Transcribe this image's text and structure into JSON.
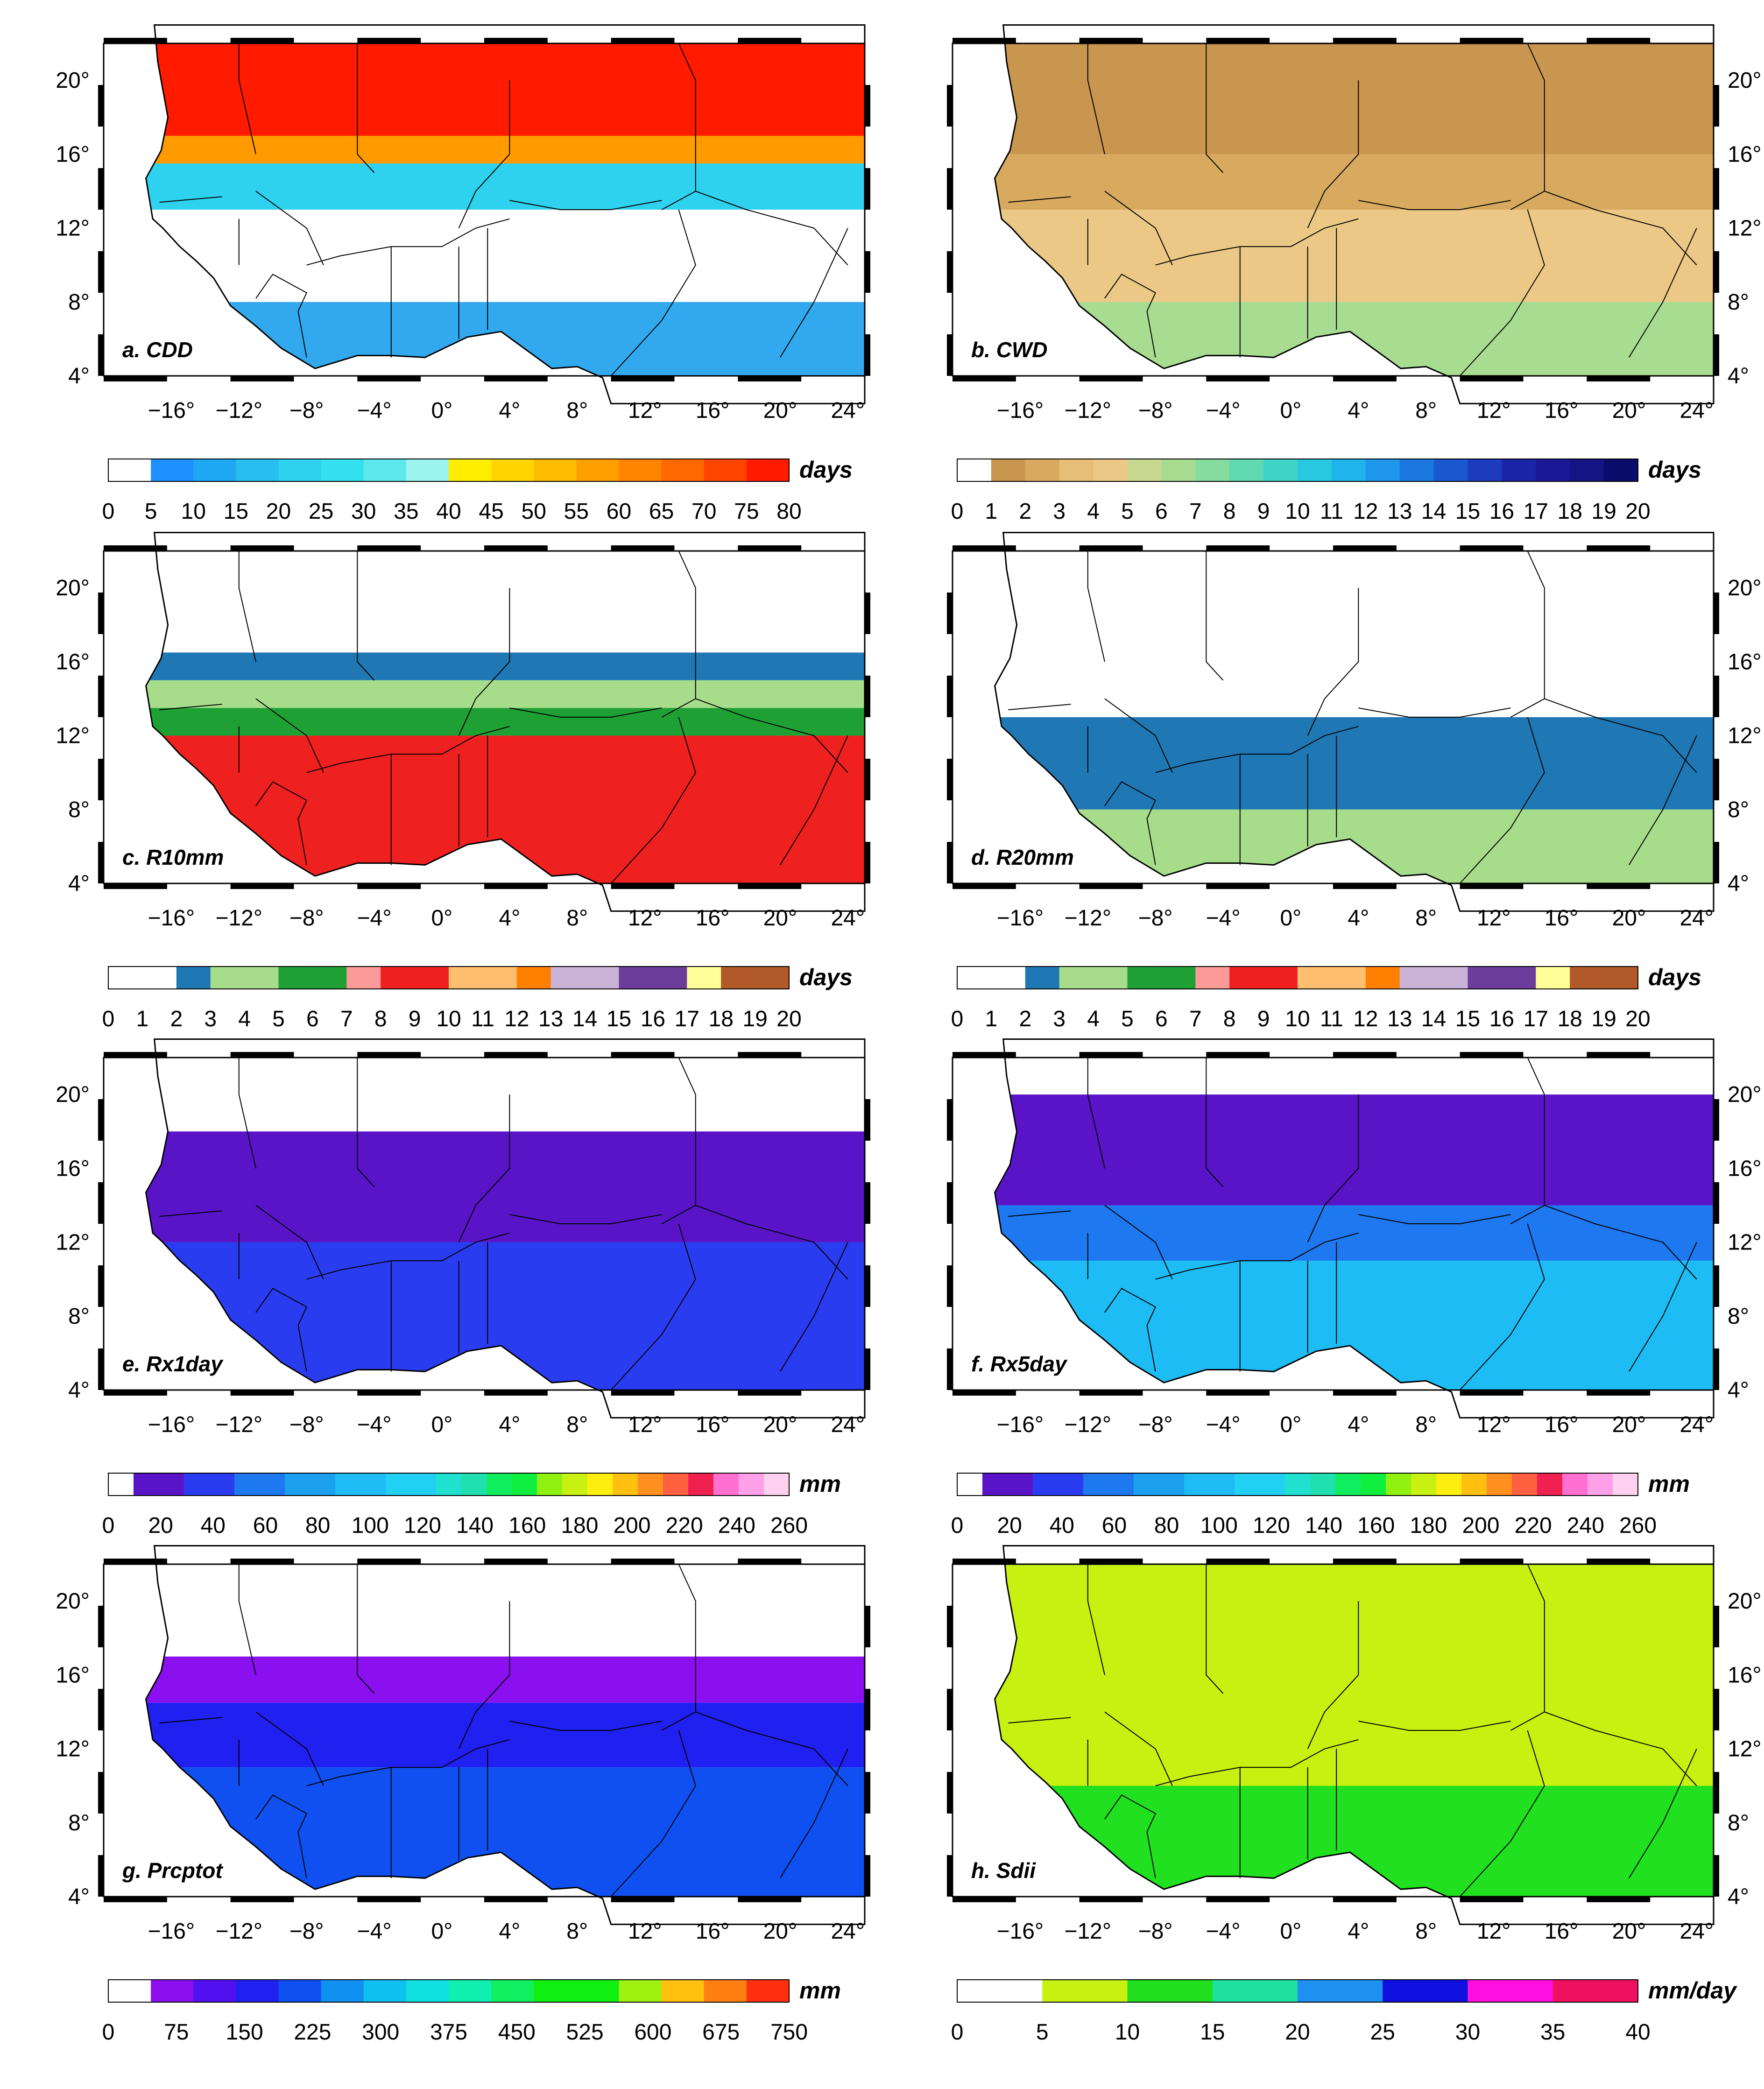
{
  "figure": "Maps of West Africa extreme precipitation indices",
  "lon_ticks": [
    "−16°",
    "−12°",
    "−8°",
    "−4°",
    "0°",
    "4°",
    "8°",
    "12°",
    "16°",
    "20°",
    "24°"
  ],
  "lat_ticks": [
    "20°",
    "16°",
    "12°",
    "8°",
    "4°"
  ],
  "map_extent": {
    "lon": [
      -20,
      25
    ],
    "lat": [
      4,
      22
    ]
  },
  "panels": [
    {
      "label": "a. CDD",
      "unit": "days",
      "colorbar": {
        "ticks": [
          "0",
          "5",
          "10",
          "15",
          "20",
          "25",
          "30",
          "35",
          "40",
          "45",
          "50",
          "55",
          "60",
          "65",
          "70",
          "75",
          "80"
        ],
        "colors": [
          "#ffffff",
          "#1e90ff",
          "#1ea8f4",
          "#28bff0",
          "#2ed2ee",
          "#32e0ee",
          "#5de8ee",
          "#9ef4ee",
          "#ffee00",
          "#ffd500",
          "#ffbb00",
          "#ffa000",
          "#ff8400",
          "#ff6800",
          "#ff4400",
          "#ff1a00"
        ]
      },
      "bands": [
        {
          "lat": [
            16,
            22
          ],
          "color": "#ff1a00"
        },
        {
          "lat": [
            14.3,
            17
          ],
          "color": "#ff9a00"
        },
        {
          "lat": [
            13,
            15.5
          ],
          "color": "#2ed2ee"
        },
        {
          "lat": [
            4,
            13
          ],
          "color": "#ffffff"
        },
        {
          "lat": [
            4,
            8
          ],
          "color": "#32a9ef"
        }
      ]
    },
    {
      "label": "b. CWD",
      "unit": "days",
      "colorbar": {
        "ticks": [
          "0",
          "1",
          "2",
          "3",
          "4",
          "5",
          "6",
          "7",
          "8",
          "9",
          "10",
          "11",
          "12",
          "13",
          "14",
          "15",
          "16",
          "17",
          "18",
          "19",
          "20"
        ],
        "colors": [
          "#ffffff",
          "#c8964e",
          "#d8aa60",
          "#e6be78",
          "#ecc886",
          "#c8d890",
          "#a8dc90",
          "#86dca0",
          "#60d8b0",
          "#40d4c8",
          "#28c8e0",
          "#20b4ec",
          "#1e96ec",
          "#1a78e0",
          "#1a58d0",
          "#1c3cbe",
          "#1c24a8",
          "#1a1896",
          "#161484",
          "#0c0c6c"
        ]
      },
      "bands": [
        {
          "lat": [
            16,
            22
          ],
          "color": "#c8964e"
        },
        {
          "lat": [
            13,
            16
          ],
          "color": "#d8aa60"
        },
        {
          "lat": [
            8,
            13
          ],
          "color": "#ecc886"
        },
        {
          "lat": [
            4,
            8
          ],
          "color": "#a8dc90"
        }
      ]
    },
    {
      "label": "c. R10mm",
      "unit": "days",
      "colorbar": {
        "ticks": [
          "0",
          "1",
          "2",
          "3",
          "4",
          "5",
          "6",
          "7",
          "8",
          "9",
          "10",
          "11",
          "12",
          "13",
          "14",
          "15",
          "16",
          "17",
          "18",
          "19",
          "20"
        ],
        "colors": [
          "#ffffff",
          "#ffffff",
          "#1f78b4",
          "#a6dc8a",
          "#a6dc8a",
          "#1fa035",
          "#1fa035",
          "#fb9a99",
          "#ee2020",
          "#ee2020",
          "#fdbf6f",
          "#fdbf6f",
          "#ff7f00",
          "#cab2d6",
          "#cab2d6",
          "#6a3d9a",
          "#6a3d9a",
          "#ffff99",
          "#b15928",
          "#b15928"
        ]
      },
      "bands": [
        {
          "lat": [
            15,
            16.5
          ],
          "color": "#1f78b4"
        },
        {
          "lat": [
            13.5,
            15
          ],
          "color": "#a6dc8a"
        },
        {
          "lat": [
            12,
            13.5
          ],
          "color": "#1fa035"
        },
        {
          "lat": [
            4,
            12
          ],
          "color": "#ee2020"
        }
      ]
    },
    {
      "label": "d. R20mm",
      "unit": "days",
      "colorbar": {
        "ticks": [
          "0",
          "1",
          "2",
          "3",
          "4",
          "5",
          "6",
          "7",
          "8",
          "9",
          "10",
          "11",
          "12",
          "13",
          "14",
          "15",
          "16",
          "17",
          "18",
          "19",
          "20"
        ],
        "colors": [
          "#ffffff",
          "#ffffff",
          "#1f78b4",
          "#a6dc8a",
          "#a6dc8a",
          "#1fa035",
          "#1fa035",
          "#fb9a99",
          "#ee2020",
          "#ee2020",
          "#fdbf6f",
          "#fdbf6f",
          "#ff7f00",
          "#cab2d6",
          "#cab2d6",
          "#6a3d9a",
          "#6a3d9a",
          "#ffff99",
          "#b15928",
          "#b15928"
        ]
      },
      "bands": [
        {
          "lat": [
            8,
            13
          ],
          "color": "#1f78b4"
        },
        {
          "lat": [
            4,
            8
          ],
          "color": "#a6dc8a"
        }
      ]
    },
    {
      "label": "e. Rx1day",
      "unit": "mm",
      "colorbar": {
        "ticks": [
          "0",
          "20",
          "40",
          "60",
          "80",
          "100",
          "120",
          "140",
          "160",
          "180",
          "200",
          "220",
          "240",
          "260"
        ],
        "colors": [
          "#ffffff",
          "#5a14c8",
          "#5a14c8",
          "#2a3cf0",
          "#2a3cf0",
          "#1e78f0",
          "#1e78f0",
          "#1ea0f0",
          "#1ea0f0",
          "#1ebcf4",
          "#1ebcf4",
          "#22d0f4",
          "#22d0f4",
          "#20e0d0",
          "#20e0b0",
          "#10ee60",
          "#10ee40",
          "#90f010",
          "#c8f010",
          "#ffee10",
          "#ffc010",
          "#ff9020",
          "#ff6040",
          "#f02050",
          "#ff70d0",
          "#ffa0e8",
          "#ffd0f0"
        ]
      },
      "bands": [
        {
          "lat": [
            12,
            18
          ],
          "color": "#5a14c8"
        },
        {
          "lat": [
            4,
            12
          ],
          "color": "#2a3cf0"
        }
      ]
    },
    {
      "label": "f. Rx5day",
      "unit": "mm",
      "colorbar": {
        "ticks": [
          "0",
          "20",
          "40",
          "60",
          "80",
          "100",
          "120",
          "140",
          "160",
          "180",
          "200",
          "220",
          "240",
          "260"
        ],
        "colors": [
          "#ffffff",
          "#5a14c8",
          "#5a14c8",
          "#2a3cf0",
          "#2a3cf0",
          "#1e78f0",
          "#1e78f0",
          "#1ea0f0",
          "#1ea0f0",
          "#1ebcf4",
          "#1ebcf4",
          "#22d0f4",
          "#22d0f4",
          "#20e0d0",
          "#20e0b0",
          "#10ee60",
          "#10ee40",
          "#90f010",
          "#c8f010",
          "#ffee10",
          "#ffc010",
          "#ff9020",
          "#ff6040",
          "#f02050",
          "#ff70d0",
          "#ffa0e8",
          "#ffd0f0"
        ]
      },
      "bands": [
        {
          "lat": [
            14,
            20
          ],
          "color": "#5a14c8"
        },
        {
          "lat": [
            11,
            14
          ],
          "color": "#1e78f0"
        },
        {
          "lat": [
            4,
            11
          ],
          "color": "#1ebcf4"
        }
      ]
    },
    {
      "label": "g. Prcptot",
      "unit": "mm",
      "colorbar": {
        "ticks": [
          "0",
          "75",
          "150",
          "225",
          "300",
          "375",
          "450",
          "525",
          "600",
          "675",
          "750"
        ],
        "colors": [
          "#ffffff",
          "#8a10f0",
          "#5010f0",
          "#2020f0",
          "#1050f0",
          "#1090f0",
          "#10c0f0",
          "#10e0e0",
          "#10f0b0",
          "#10f060",
          "#10f010",
          "#10f010",
          "#a0f010",
          "#ffc010",
          "#ff8010",
          "#ff3010"
        ]
      },
      "bands": [
        {
          "lat": [
            14.5,
            17
          ],
          "color": "#8a10f0"
        },
        {
          "lat": [
            11,
            14.5
          ],
          "color": "#2020f0"
        },
        {
          "lat": [
            4,
            11
          ],
          "color": "#1050f0"
        }
      ]
    },
    {
      "label": "h. Sdii",
      "unit": "mm/day",
      "colorbar": {
        "ticks": [
          "0",
          "5",
          "10",
          "15",
          "20",
          "25",
          "30",
          "35",
          "40"
        ],
        "colors": [
          "#ffffff",
          "#c8f010",
          "#20e020",
          "#20e0a0",
          "#1e90f0",
          "#1010e0",
          "#ff10e0",
          "#f01060"
        ]
      },
      "bands": [
        {
          "lat": [
            4,
            22
          ],
          "color": "#c8f010"
        },
        {
          "lat": [
            4,
            10
          ],
          "color": "#20e020"
        }
      ]
    }
  ]
}
